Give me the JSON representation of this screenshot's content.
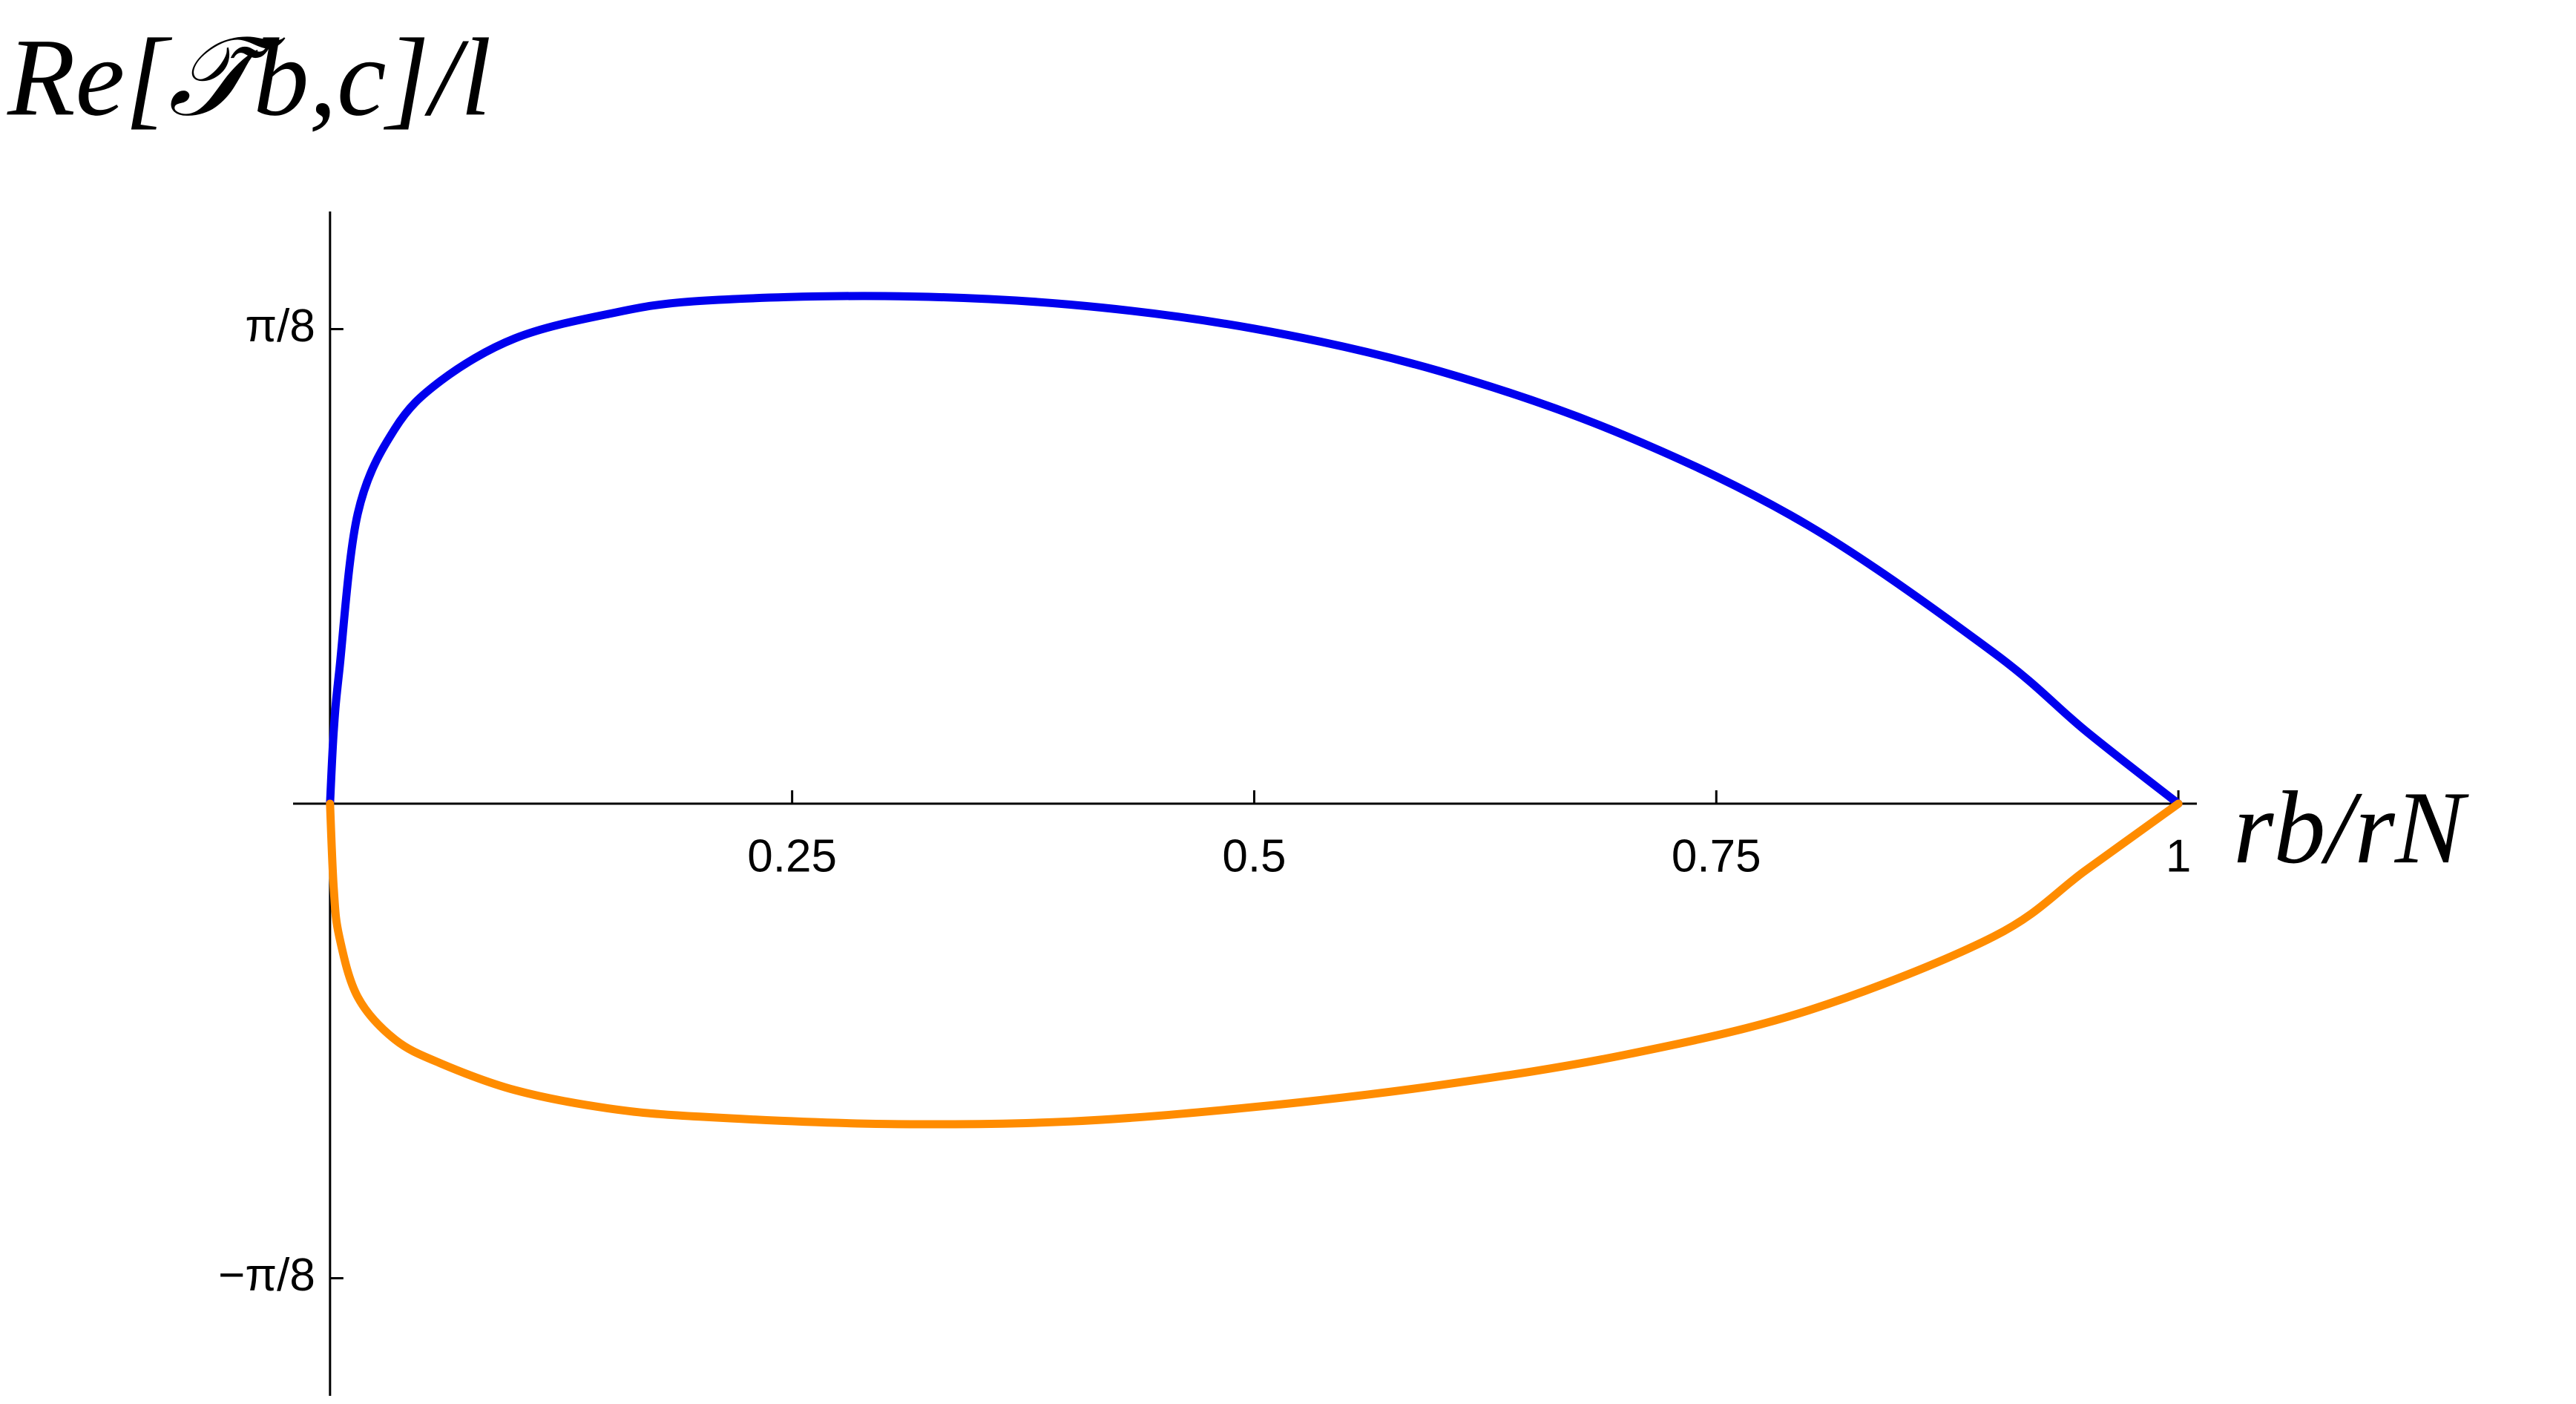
{
  "chart_data": {
    "type": "line",
    "x_label": "rb/rN",
    "y_label": "Re[𝒯̃b,c]/l",
    "x": [
      0,
      0.002,
      0.005,
      0.015,
      0.035,
      0.06,
      0.1,
      0.15,
      0.2,
      0.3,
      0.4,
      0.5,
      0.6,
      0.7,
      0.8,
      0.9,
      0.95,
      1
    ],
    "series": [
      {
        "color": "#0000ee",
        "values": [
          0,
          0.06,
          0.11,
          0.24,
          0.31,
          0.35,
          0.385,
          0.405,
          0.416,
          0.42,
          0.413,
          0.393,
          0.358,
          0.305,
          0.23,
          0.125,
          0.06,
          0
        ]
      },
      {
        "color": "#ff8c00",
        "values": [
          0,
          -0.07,
          -0.11,
          -0.16,
          -0.195,
          -0.215,
          -0.237,
          -0.252,
          -0.259,
          -0.265,
          -0.263,
          -0.251,
          -0.233,
          -0.208,
          -0.171,
          -0.11,
          -0.055,
          0
        ]
      }
    ],
    "xlim": [
      -0.02,
      1.01
    ],
    "ylim": [
      -0.49,
      0.49
    ],
    "xticks": [
      0.25,
      0.5,
      0.75,
      1
    ],
    "yticks": [
      {
        "value": -0.3927,
        "label": "−π/8"
      },
      {
        "value": 0.3927,
        "label": "π/8"
      }
    ]
  }
}
